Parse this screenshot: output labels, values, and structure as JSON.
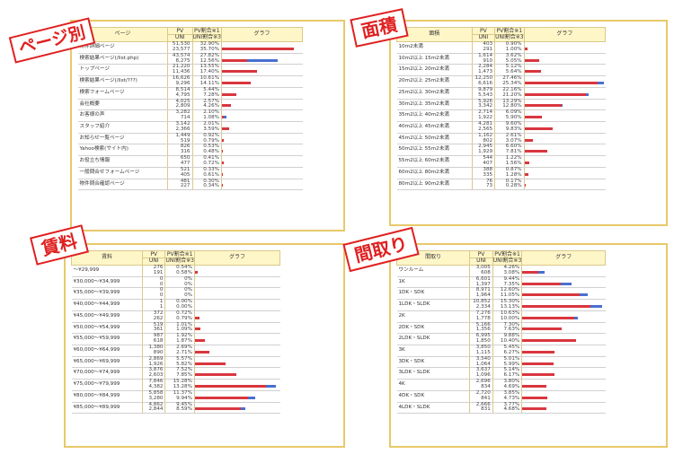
{
  "headers": {
    "pv": "PV",
    "uni": "UNI",
    "pv_ratio": "PV割合※1",
    "uni_ratio": "UNI割合※3",
    "graph": "グラフ"
  },
  "panels": [
    {
      "tag": "ページ別",
      "label_header": "ページ",
      "max_pct": 40,
      "rows": [
        {
          "label": "物件詳細ページ",
          "pv": "51,530",
          "uni": "23,577",
          "pv_pct": "32.90%",
          "uni_pct": "35.70%",
          "pv_v": 32.9,
          "uni_v": 35.7
        },
        {
          "label": "検索結果ページ(/list.php)",
          "pv": "43,574",
          "uni": "8,275",
          "pv_pct": "27.82%",
          "uni_pct": "12.56%",
          "pv_v": 27.82,
          "uni_v": 12.56
        },
        {
          "label": "トップページ",
          "pv": "21,220",
          "uni": "11,436",
          "pv_pct": "13.55%",
          "uni_pct": "17.40%",
          "pv_v": 13.55,
          "uni_v": 17.4
        },
        {
          "label": "検索結果ページ(/list/???)",
          "pv": "16,626",
          "uni": "9,296",
          "pv_pct": "10.61%",
          "uni_pct": "14.11%",
          "pv_v": 10.61,
          "uni_v": 14.11
        },
        {
          "label": "検索フォームページ",
          "pv": "8,514",
          "uni": "4,795",
          "pv_pct": "5.44%",
          "uni_pct": "7.28%",
          "pv_v": 5.44,
          "uni_v": 7.28
        },
        {
          "label": "会社概要",
          "pv": "4,025",
          "uni": "2,809",
          "pv_pct": "2.57%",
          "uni_pct": "4.26%",
          "pv_v": 2.57,
          "uni_v": 4.26
        },
        {
          "label": "お客様の声",
          "pv": "3,282",
          "uni": "714",
          "pv_pct": "2.10%",
          "uni_pct": "1.08%",
          "pv_v": 2.1,
          "uni_v": 1.08
        },
        {
          "label": "スタッフ紹介",
          "pv": "3,142",
          "uni": "2,366",
          "pv_pct": "2.01%",
          "uni_pct": "3.59%",
          "pv_v": 2.01,
          "uni_v": 3.59
        },
        {
          "label": "お知らせ一覧ページ",
          "pv": "1,449",
          "uni": "519",
          "pv_pct": "0.92%",
          "uni_pct": "0.79%",
          "pv_v": 0.92,
          "uni_v": 0.79
        },
        {
          "label": "Yahoo検索(サイト内)",
          "pv": "826",
          "uni": "316",
          "pv_pct": "0.53%",
          "uni_pct": "0.48%",
          "pv_v": 0.53,
          "uni_v": 0.48
        },
        {
          "label": "お役立ち情報",
          "pv": "650",
          "uni": "477",
          "pv_pct": "0.41%",
          "uni_pct": "0.72%",
          "pv_v": 0.41,
          "uni_v": 0.72
        },
        {
          "label": "一般問合せフォームページ",
          "pv": "521",
          "uni": "405",
          "pv_pct": "0.33%",
          "uni_pct": "0.61%",
          "pv_v": 0.33,
          "uni_v": 0.61
        },
        {
          "label": "物件問合確認ページ",
          "pv": "481",
          "uni": "227",
          "pv_pct": "0.30%",
          "uni_pct": "0.34%",
          "pv_v": 0.3,
          "uni_v": 0.34
        }
      ]
    },
    {
      "tag": "面積",
      "label_header": "面積",
      "max_pct": 28,
      "rows": [
        {
          "label": "10m2未満",
          "pv": "403",
          "uni": "291",
          "pv_pct": "0.90%",
          "uni_pct": "1.00%",
          "pv_v": 0.9,
          "uni_v": 1.0
        },
        {
          "label": "10m2以上 15m2未満",
          "pv": "1,614",
          "uni": "910",
          "pv_pct": "3.62%",
          "uni_pct": "5.05%",
          "pv_v": 3.62,
          "uni_v": 5.05
        },
        {
          "label": "15m2以上 20m2未満",
          "pv": "2,284",
          "uni": "1,473",
          "pv_pct": "5.12%",
          "uni_pct": "5.64%",
          "pv_v": 5.12,
          "uni_v": 5.64
        },
        {
          "label": "20m2以上 25m2未満",
          "pv": "12,250",
          "uni": "6,616",
          "pv_pct": "27.46%",
          "uni_pct": "25.34%",
          "pv_v": 27.46,
          "uni_v": 25.34
        },
        {
          "label": "25m2以上 30m2未満",
          "pv": "9,879",
          "uni": "5,543",
          "pv_pct": "22.16%",
          "uni_pct": "21.20%",
          "pv_v": 22.16,
          "uni_v": 21.2
        },
        {
          "label": "30m2以上 35m2未満",
          "pv": "5,926",
          "uni": "3,342",
          "pv_pct": "13.29%",
          "uni_pct": "12.80%",
          "pv_v": 13.29,
          "uni_v": 12.8
        },
        {
          "label": "35m2以上 40m2未満",
          "pv": "2,714",
          "uni": "1,922",
          "pv_pct": "6.09%",
          "uni_pct": "5.90%",
          "pv_v": 6.09,
          "uni_v": 5.9
        },
        {
          "label": "40m2以上 45m2未満",
          "pv": "4,281",
          "uni": "2,565",
          "pv_pct": "9.60%",
          "uni_pct": "9.83%",
          "pv_v": 9.6,
          "uni_v": 9.83
        },
        {
          "label": "45m2以上 50m2未満",
          "pv": "1,162",
          "uni": "802",
          "pv_pct": "2.61%",
          "uni_pct": "3.07%",
          "pv_v": 2.61,
          "uni_v": 3.07
        },
        {
          "label": "50m2以上 55m2未満",
          "pv": "2,945",
          "uni": "1,929",
          "pv_pct": "6.60%",
          "uni_pct": "7.81%",
          "pv_v": 6.6,
          "uni_v": 7.81
        },
        {
          "label": "55m2以上 60m2未満",
          "pv": "544",
          "uni": "407",
          "pv_pct": "1.22%",
          "uni_pct": "1.56%",
          "pv_v": 1.22,
          "uni_v": 1.56
        },
        {
          "label": "60m2以上 80m2未満",
          "pv": "388",
          "uni": "335",
          "pv_pct": "0.87%",
          "uni_pct": "1.28%",
          "pv_v": 0.87,
          "uni_v": 1.28
        },
        {
          "label": "80m2以上 90m2未満",
          "pv": "76",
          "uni": "73",
          "pv_pct": "0.17%",
          "uni_pct": "0.28%",
          "pv_v": 0.17,
          "uni_v": 0.28
        }
      ]
    },
    {
      "tag": "賃料",
      "label_header": "賃料",
      "max_pct": 16,
      "rows": [
        {
          "label": "～¥29,999",
          "pv": "276",
          "uni": "191",
          "pv_pct": "0.54%",
          "uni_pct": "0.58%",
          "pv_v": 0.54,
          "uni_v": 0.58
        },
        {
          "label": "¥30,000～¥34,999",
          "pv": "0",
          "uni": "0",
          "pv_pct": "0%",
          "uni_pct": "0%",
          "pv_v": 0,
          "uni_v": 0
        },
        {
          "label": "¥35,000～¥39,999",
          "pv": "0",
          "uni": "0",
          "pv_pct": "0%",
          "uni_pct": "0%",
          "pv_v": 0,
          "uni_v": 0
        },
        {
          "label": "¥40,000～¥44,999",
          "pv": "1",
          "uni": "1",
          "pv_pct": "0.00%",
          "uni_pct": "0.00%",
          "pv_v": 0,
          "uni_v": 0
        },
        {
          "label": "¥45,000～¥49,999",
          "pv": "372",
          "uni": "262",
          "pv_pct": "0.72%",
          "uni_pct": "0.79%",
          "pv_v": 0.72,
          "uni_v": 0.79
        },
        {
          "label": "¥50,000～¥54,999",
          "pv": "519",
          "uni": "361",
          "pv_pct": "1.01%",
          "uni_pct": "1.09%",
          "pv_v": 1.01,
          "uni_v": 1.09
        },
        {
          "label": "¥55,000～¥59,999",
          "pv": "987",
          "uni": "618",
          "pv_pct": "1.92%",
          "uni_pct": "1.87%",
          "pv_v": 1.92,
          "uni_v": 1.87
        },
        {
          "label": "¥60,000～¥64,999",
          "pv": "1,380",
          "uni": "890",
          "pv_pct": "2.69%",
          "uni_pct": "2.71%",
          "pv_v": 2.69,
          "uni_v": 2.71
        },
        {
          "label": "¥65,000～¥69,999",
          "pv": "2,869",
          "uni": "1,926",
          "pv_pct": "5.57%",
          "uni_pct": "5.82%",
          "pv_v": 5.57,
          "uni_v": 5.82
        },
        {
          "label": "¥70,000～¥74,999",
          "pv": "3,876",
          "uni": "2,603",
          "pv_pct": "7.52%",
          "uni_pct": "7.85%",
          "pv_v": 7.52,
          "uni_v": 7.85
        },
        {
          "label": "¥75,000～¥79,999",
          "pv": "7,846",
          "uni": "4,382",
          "pv_pct": "15.28%",
          "uni_pct": "13.28%",
          "pv_v": 15.28,
          "uni_v": 13.28
        },
        {
          "label": "¥80,000～¥84,999",
          "pv": "5,858",
          "uni": "3,280",
          "pv_pct": "11.37%",
          "uni_pct": "9.94%",
          "pv_v": 11.37,
          "uni_v": 9.94
        },
        {
          "label": "¥85,000～¥89,999",
          "pv": "4,862",
          "uni": "2,844",
          "pv_pct": "9.45%",
          "uni_pct": "8.59%",
          "pv_v": 9.45,
          "uni_v": 8.59
        }
      ]
    },
    {
      "tag": "間取り",
      "label_header": "間取り",
      "max_pct": 16,
      "rows": [
        {
          "label": "ワンルーム",
          "pv": "3,005",
          "uni": "608",
          "pv_pct": "4.26%",
          "uni_pct": "3.08%",
          "pv_v": 4.26,
          "uni_v": 3.08
        },
        {
          "label": "1K",
          "pv": "6,601",
          "uni": "1,397",
          "pv_pct": "9.44%",
          "uni_pct": "7.35%",
          "pv_v": 9.44,
          "uni_v": 7.35
        },
        {
          "label": "1DK・SDK",
          "pv": "8,971",
          "uni": "1,964",
          "pv_pct": "12.60%",
          "uni_pct": "11.05%",
          "pv_v": 12.6,
          "uni_v": 11.05
        },
        {
          "label": "1LDK・SLDK",
          "pv": "10,852",
          "uni": "2,334",
          "pv_pct": "15.30%",
          "uni_pct": "13.13%",
          "pv_v": 15.3,
          "uni_v": 13.13
        },
        {
          "label": "2K",
          "pv": "7,276",
          "uni": "1,778",
          "pv_pct": "10.63%",
          "uni_pct": "10.00%",
          "pv_v": 10.63,
          "uni_v": 10.0
        },
        {
          "label": "2DK・SDK",
          "pv": "5,166",
          "uni": "1,356",
          "pv_pct": "7.30%",
          "uni_pct": "7.63%",
          "pv_v": 7.3,
          "uni_v": 7.63
        },
        {
          "label": "2LDK・SLDK",
          "pv": "6,995",
          "uni": "1,850",
          "pv_pct": "9.88%",
          "uni_pct": "10.40%",
          "pv_v": 9.88,
          "uni_v": 10.4
        },
        {
          "label": "3K",
          "pv": "3,850",
          "uni": "1,115",
          "pv_pct": "5.45%",
          "uni_pct": "6.27%",
          "pv_v": 5.45,
          "uni_v": 6.27
        },
        {
          "label": "3DK・SDK",
          "pv": "3,540",
          "uni": "1,064",
          "pv_pct": "5.01%",
          "uni_pct": "5.99%",
          "pv_v": 5.01,
          "uni_v": 5.99
        },
        {
          "label": "3LDK・SLDK",
          "pv": "3,637",
          "uni": "1,096",
          "pv_pct": "5.14%",
          "uni_pct": "6.17%",
          "pv_v": 5.14,
          "uni_v": 6.17
        },
        {
          "label": "4K",
          "pv": "2,696",
          "uni": "834",
          "pv_pct": "3.80%",
          "uni_pct": "4.69%",
          "pv_v": 3.8,
          "uni_v": 4.69
        },
        {
          "label": "4DK・SDK",
          "pv": "2,720",
          "uni": "841",
          "pv_pct": "3.85%",
          "uni_pct": "4.73%",
          "pv_v": 3.85,
          "uni_v": 4.73
        },
        {
          "label": "4LDK・SLDK",
          "pv": "2,666",
          "uni": "831",
          "pv_pct": "3.77%",
          "uni_pct": "4.68%",
          "pv_v": 3.77,
          "uni_v": 4.68
        }
      ]
    }
  ],
  "colors": {
    "pv_bar": "#4a6fd1",
    "uni_bar": "#d9363e",
    "header_bg": "#fff6c8",
    "panel_border": "#e8c96a",
    "tag_red": "#e02020"
  },
  "chart_data": [
    {
      "type": "bar",
      "title": "ページ別",
      "categories": [
        "物件詳細ページ",
        "検索結果ページ(/list.php)",
        "トップページ",
        "検索結果ページ(/list/???)",
        "検索フォームページ",
        "会社概要",
        "お客様の声",
        "スタッフ紹介",
        "お知らせ一覧ページ",
        "Yahoo検索(サイト内)",
        "お役立ち情報",
        "一般問合せフォームページ",
        "物件問合確認ページ"
      ],
      "series": [
        {
          "name": "PV割合",
          "values": [
            32.9,
            27.82,
            13.55,
            10.61,
            5.44,
            2.57,
            2.1,
            2.01,
            0.92,
            0.53,
            0.41,
            0.33,
            0.3
          ]
        },
        {
          "name": "UNI割合",
          "values": [
            35.7,
            12.56,
            17.4,
            14.11,
            7.28,
            4.26,
            1.08,
            3.59,
            0.79,
            0.48,
            0.72,
            0.61,
            0.34
          ]
        }
      ]
    },
    {
      "type": "bar",
      "title": "面積",
      "categories": [
        "10m2未満",
        "10m2以上 15m2未満",
        "15m2以上 20m2未満",
        "20m2以上 25m2未満",
        "25m2以上 30m2未満",
        "30m2以上 35m2未満",
        "35m2以上 40m2未満",
        "40m2以上 45m2未満",
        "45m2以上 50m2未満",
        "50m2以上 55m2未満",
        "55m2以上 60m2未満",
        "60m2以上 80m2未満",
        "80m2以上 90m2未満"
      ],
      "series": [
        {
          "name": "PV割合",
          "values": [
            0.9,
            3.62,
            5.12,
            27.46,
            22.16,
            13.29,
            6.09,
            9.6,
            2.61,
            6.6,
            1.22,
            0.87,
            0.17
          ]
        },
        {
          "name": "UNI割合",
          "values": [
            1.0,
            5.05,
            5.64,
            25.34,
            21.2,
            12.8,
            5.9,
            9.83,
            3.07,
            7.81,
            1.56,
            1.28,
            0.28
          ]
        }
      ]
    },
    {
      "type": "bar",
      "title": "賃料",
      "categories": [
        "～¥29,999",
        "¥30,000～¥34,999",
        "¥35,000～¥39,999",
        "¥40,000～¥44,999",
        "¥45,000～¥49,999",
        "¥50,000～¥54,999",
        "¥55,000～¥59,999",
        "¥60,000～¥64,999",
        "¥65,000～¥69,999",
        "¥70,000～¥74,999",
        "¥75,000～¥79,999",
        "¥80,000～¥84,999",
        "¥85,000～¥89,999"
      ],
      "series": [
        {
          "name": "PV割合",
          "values": [
            0.54,
            0,
            0,
            0,
            0.72,
            1.01,
            1.92,
            2.69,
            5.57,
            7.52,
            15.28,
            11.37,
            9.45
          ]
        },
        {
          "name": "UNI割合",
          "values": [
            0.58,
            0,
            0,
            0,
            0.79,
            1.09,
            1.87,
            2.71,
            5.82,
            7.85,
            13.28,
            9.94,
            8.59
          ]
        }
      ]
    },
    {
      "type": "bar",
      "title": "間取り",
      "categories": [
        "ワンルーム",
        "1K",
        "1DK・SDK",
        "1LDK・SLDK",
        "2K",
        "2DK・SDK",
        "2LDK・SLDK",
        "3K",
        "3DK・SDK",
        "3LDK・SLDK",
        "4K",
        "4DK・SDK",
        "4LDK・SLDK"
      ],
      "series": [
        {
          "name": "PV割合",
          "values": [
            4.26,
            9.44,
            12.6,
            15.3,
            10.63,
            7.3,
            9.88,
            5.45,
            5.01,
            5.14,
            3.8,
            3.85,
            3.77
          ]
        },
        {
          "name": "UNI割合",
          "values": [
            3.08,
            7.35,
            11.05,
            13.13,
            10.0,
            7.63,
            10.4,
            6.27,
            5.99,
            6.17,
            4.69,
            4.73,
            4.68
          ]
        }
      ]
    }
  ]
}
